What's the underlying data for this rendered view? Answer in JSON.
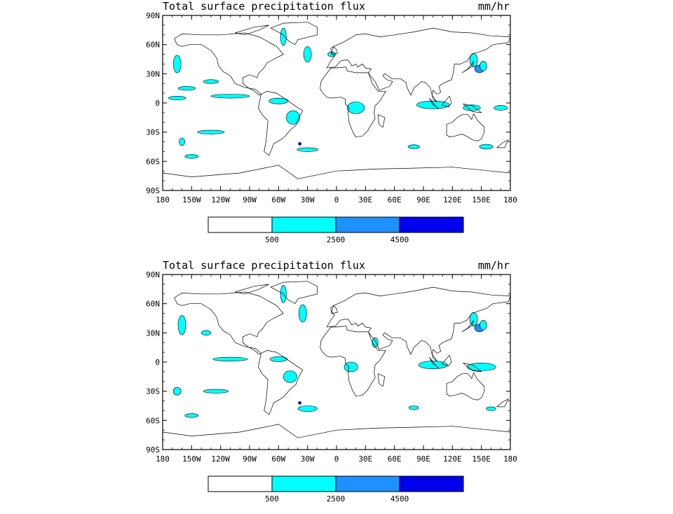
{
  "colorbar": {
    "colors": [
      "#ffffff",
      "#00ffff",
      "#1e90ff",
      "#0000ee"
    ],
    "labels": [
      "500",
      "2500",
      "4500"
    ]
  },
  "lon_ticks": [
    "180",
    "150W",
    "120W",
    "90W",
    "60W",
    "30W",
    "0",
    "30E",
    "60E",
    "90E",
    "120E",
    "150E",
    "180"
  ],
  "lat_ticks": [
    "90N",
    "60N",
    "30N",
    "0",
    "30S",
    "60S",
    "90S"
  ],
  "colors": {
    "land_outline": "#000000",
    "frame": "#000000",
    "background": "#ffffff"
  },
  "panels": [
    {
      "title": "Total surface precipitation flux",
      "units": "mm/hr",
      "regions": [
        {
          "lon": 148,
          "lat": 35,
          "w": 10,
          "h": 8,
          "level": 2
        },
        {
          "lon": 152,
          "lat": 38,
          "w": 7,
          "h": 10,
          "level": 1
        },
        {
          "lon": 142,
          "lat": 44,
          "w": 8,
          "h": 14,
          "level": 1
        },
        {
          "lon": -38,
          "lat": -42,
          "w": 3,
          "h": 3,
          "level": 3
        },
        {
          "lon": -165,
          "lat": 40,
          "w": 8,
          "h": 18,
          "level": 1
        },
        {
          "lon": -155,
          "lat": 15,
          "w": 18,
          "h": 4,
          "level": 1
        },
        {
          "lon": -130,
          "lat": 22,
          "w": 16,
          "h": 4,
          "level": 1
        },
        {
          "lon": -55,
          "lat": 68,
          "w": 6,
          "h": 18,
          "level": 1
        },
        {
          "lon": -30,
          "lat": 50,
          "w": 8,
          "h": 16,
          "level": 1
        },
        {
          "lon": -110,
          "lat": 7,
          "w": 40,
          "h": 4,
          "level": 1
        },
        {
          "lon": -165,
          "lat": 5,
          "w": 18,
          "h": 4,
          "level": 1
        },
        {
          "lon": -60,
          "lat": 2,
          "w": 20,
          "h": 6,
          "level": 1
        },
        {
          "lon": -45,
          "lat": -15,
          "w": 14,
          "h": 14,
          "level": 1
        },
        {
          "lon": -30,
          "lat": -48,
          "w": 22,
          "h": 4,
          "level": 1
        },
        {
          "lon": 20,
          "lat": -5,
          "w": 18,
          "h": 12,
          "level": 1
        },
        {
          "lon": 100,
          "lat": -2,
          "w": 34,
          "h": 8,
          "level": 1
        },
        {
          "lon": 140,
          "lat": -5,
          "w": 18,
          "h": 6,
          "level": 1
        },
        {
          "lon": 170,
          "lat": -5,
          "w": 14,
          "h": 5,
          "level": 1
        },
        {
          "lon": -130,
          "lat": -30,
          "w": 28,
          "h": 4,
          "level": 1
        },
        {
          "lon": -150,
          "lat": -55,
          "w": 14,
          "h": 4,
          "level": 1
        },
        {
          "lon": -160,
          "lat": -40,
          "w": 6,
          "h": 8,
          "level": 1
        },
        {
          "lon": 80,
          "lat": -45,
          "w": 12,
          "h": 4,
          "level": 1
        },
        {
          "lon": 155,
          "lat": -45,
          "w": 14,
          "h": 5,
          "level": 1
        },
        {
          "lon": -5,
          "lat": 50,
          "w": 8,
          "h": 5,
          "level": 1
        }
      ]
    },
    {
      "title": "Total surface precipitation flux",
      "units": "mm/hr",
      "regions": [
        {
          "lon": 148,
          "lat": 35,
          "w": 10,
          "h": 8,
          "level": 2
        },
        {
          "lon": 152,
          "lat": 38,
          "w": 7,
          "h": 10,
          "level": 1
        },
        {
          "lon": 142,
          "lat": 44,
          "w": 8,
          "h": 14,
          "level": 1
        },
        {
          "lon": -38,
          "lat": -42,
          "w": 3,
          "h": 3,
          "level": 3
        },
        {
          "lon": -160,
          "lat": 38,
          "w": 8,
          "h": 20,
          "level": 1
        },
        {
          "lon": -135,
          "lat": 30,
          "w": 10,
          "h": 5,
          "level": 1
        },
        {
          "lon": -55,
          "lat": 70,
          "w": 6,
          "h": 18,
          "level": 1
        },
        {
          "lon": -35,
          "lat": 50,
          "w": 8,
          "h": 18,
          "level": 1
        },
        {
          "lon": -110,
          "lat": 3,
          "w": 36,
          "h": 4,
          "level": 1
        },
        {
          "lon": -60,
          "lat": 3,
          "w": 18,
          "h": 5,
          "level": 1
        },
        {
          "lon": -48,
          "lat": -15,
          "w": 14,
          "h": 12,
          "level": 1
        },
        {
          "lon": -30,
          "lat": -48,
          "w": 20,
          "h": 6,
          "level": 1
        },
        {
          "lon": 15,
          "lat": -5,
          "w": 14,
          "h": 10,
          "level": 1
        },
        {
          "lon": 100,
          "lat": -3,
          "w": 30,
          "h": 8,
          "level": 1
        },
        {
          "lon": 150,
          "lat": -5,
          "w": 30,
          "h": 8,
          "level": 1
        },
        {
          "lon": -125,
          "lat": -30,
          "w": 26,
          "h": 4,
          "level": 1
        },
        {
          "lon": -150,
          "lat": -55,
          "w": 14,
          "h": 4,
          "level": 1
        },
        {
          "lon": -165,
          "lat": -30,
          "w": 8,
          "h": 8,
          "level": 1
        },
        {
          "lon": 80,
          "lat": -47,
          "w": 10,
          "h": 4,
          "level": 1
        },
        {
          "lon": 160,
          "lat": -48,
          "w": 10,
          "h": 4,
          "level": 1
        },
        {
          "lon": 40,
          "lat": 20,
          "w": 6,
          "h": 10,
          "level": 1
        }
      ]
    }
  ]
}
